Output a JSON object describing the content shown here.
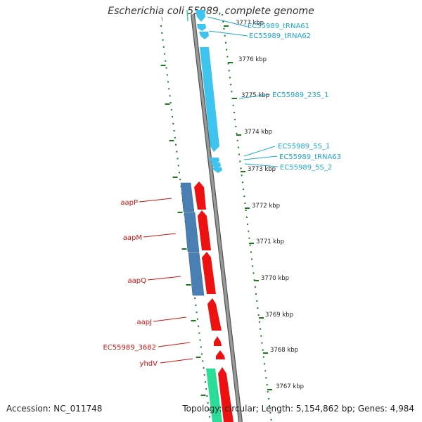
{
  "title": "Escherichia coli 55989, complete genome",
  "footer": {
    "accession": "Accession: NC_011748",
    "topology": "Topology: circular; Length: 5,154,862 bp; Genes: 4,984"
  },
  "colors": {
    "backbone": "#8c8c8c",
    "tick": "#1b7a1b",
    "rna_feature": "#3ec4ee",
    "cds_forward": "#ee1111",
    "cds_reverse": "#4a7fb4",
    "cds_green": "#2bdc98",
    "label_red": "#cc1111",
    "label_cyan": "#1ea8d0"
  },
  "kbp_ticks": [
    "3777 kbp",
    "3776 kbp",
    "3775 kbp",
    "3774 kbp",
    "3773 kbp",
    "3772 kbp",
    "3771 kbp",
    "3770 kbp",
    "3769 kbp",
    "3768 kbp",
    "3767 kbp"
  ],
  "features": {
    "right": [
      "EC55989_tRNA61",
      "EC55989_tRNA62",
      "EC55989_23S_1",
      "EC55989_5S_1",
      "EC55989_tRNA63",
      "EC55989_5S_2"
    ],
    "left": [
      "aapP",
      "aapM",
      "aapQ",
      "aapJ",
      "EC55989_3682",
      "yhdV"
    ]
  }
}
